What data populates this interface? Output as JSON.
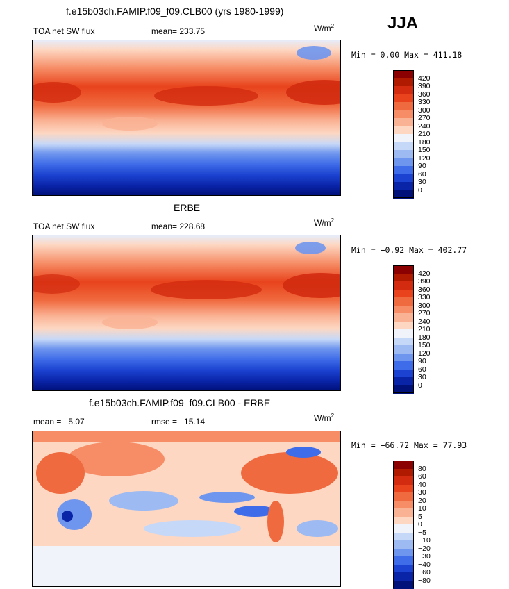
{
  "season": "JJA",
  "panels": [
    {
      "title": "f.e15b03ch.FAMIP.f09_f09.CLB00 (yrs 1980-1999)",
      "left_label": "TOA net SW flux",
      "stat_label": "mean=",
      "stat_value": "233.75",
      "units_base": "W/m",
      "units_exp": "2",
      "minmax": "Min =   0.00 Max = 411.18",
      "levels": [
        "420",
        "390",
        "360",
        "330",
        "300",
        "270",
        "240",
        "210",
        "180",
        "150",
        "120",
        "90",
        "60",
        "30",
        "0"
      ],
      "colors": [
        "#8b0000",
        "#b01a00",
        "#d22b0f",
        "#e8431c",
        "#f06a3f",
        "#f68d66",
        "#fab294",
        "#fdd7c2",
        "#f1f3fb",
        "#c6d8f7",
        "#9dbaf2",
        "#6f96ee",
        "#3f6ce8",
        "#1b42d0",
        "#0a24a8",
        "#00117a"
      ]
    },
    {
      "title": "ERBE",
      "left_label": "TOA net SW flux",
      "stat_label": "mean=",
      "stat_value": "228.68",
      "units_base": "W/m",
      "units_exp": "2",
      "minmax": "Min =  −0.92 Max = 402.77",
      "levels": [
        "420",
        "390",
        "360",
        "330",
        "300",
        "270",
        "240",
        "210",
        "180",
        "150",
        "120",
        "90",
        "60",
        "30",
        "0"
      ],
      "colors": [
        "#8b0000",
        "#b01a00",
        "#d22b0f",
        "#e8431c",
        "#f06a3f",
        "#f68d66",
        "#fab294",
        "#fdd7c2",
        "#f1f3fb",
        "#c6d8f7",
        "#9dbaf2",
        "#6f96ee",
        "#3f6ce8",
        "#1b42d0",
        "#0a24a8",
        "#00117a"
      ]
    },
    {
      "title": "f.e15b03ch.FAMIP.f09_f09.CLB00 - ERBE",
      "left_label_name": "mean =",
      "left_label_value": "5.07",
      "stat_label": "rmse =",
      "stat_value": "15.14",
      "units_base": "W/m",
      "units_exp": "2",
      "minmax": "Min = −66.72 Max =  77.93",
      "levels": [
        "80",
        "60",
        "40",
        "30",
        "20",
        "10",
        "5",
        "0",
        "−5",
        "−10",
        "−20",
        "−30",
        "−40",
        "−60",
        "−80"
      ],
      "colors": [
        "#8b0000",
        "#b01a00",
        "#d22b0f",
        "#e8431c",
        "#f06a3f",
        "#f68d66",
        "#fab294",
        "#fdd7c2",
        "#f1f3fb",
        "#c6d8f7",
        "#9dbaf2",
        "#6f96ee",
        "#3f6ce8",
        "#1b42d0",
        "#0a24a8",
        "#00117a"
      ]
    }
  ]
}
